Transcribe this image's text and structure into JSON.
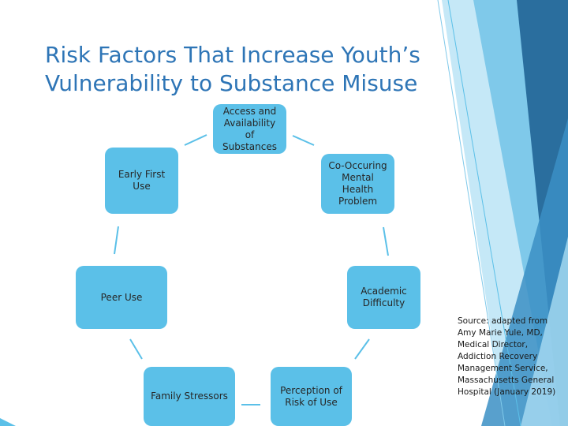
{
  "title": "Risk Factors That Increase Youth’s\nVulnerability to Substance Misuse",
  "nodes": {
    "access": "Access and\nAvailability\nof\nSubstances",
    "cooccurring": "Co-Occuring\nMental\nHealth\nProblem",
    "academic": "Academic\nDifficulty",
    "perception": "Perception of\nRisk of Use",
    "family": "Family Stressors",
    "peer": "Peer Use",
    "early": "Early First\nUse"
  },
  "source": "Source: adapted from Amy Marie Yule, MD, Medical Director, Addiction Recovery Management Service, Massachusetts General Hospital (January 2019)",
  "colors": {
    "title": "#2e75b6",
    "node_fill": "#5bc0e8",
    "connector": "#5bc0e8",
    "deco_dark": "#2a6e9e",
    "deco_mid": "#3b8fc4",
    "deco_light": "#a9dcf2"
  }
}
